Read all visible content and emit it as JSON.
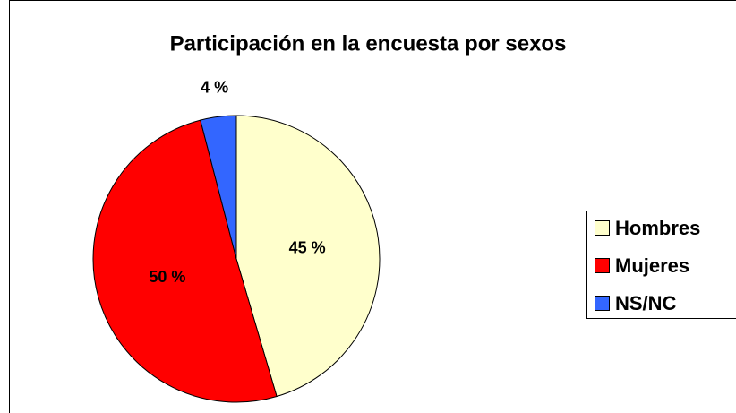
{
  "chart_data": {
    "type": "pie",
    "title": "Participación en la encuesta por sexos",
    "categories": [
      "Hombres",
      "Mujeres",
      "NS/NC"
    ],
    "values": [
      45,
      50,
      4
    ],
    "value_labels": [
      "45 %",
      "50 %",
      "4 %"
    ],
    "colors": [
      "#ffffcc",
      "#ff0000",
      "#3366ff"
    ],
    "legend": "right"
  }
}
